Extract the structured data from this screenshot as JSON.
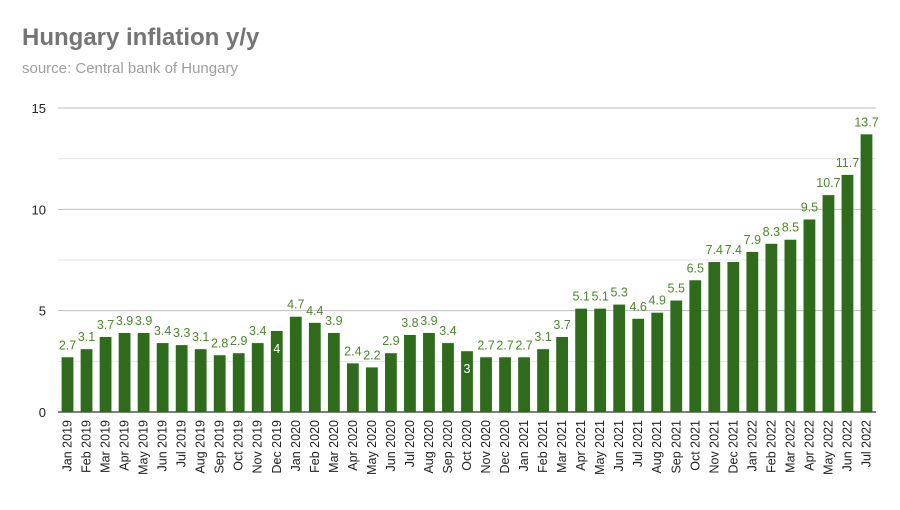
{
  "chart_data": {
    "type": "bar",
    "title": "Hungary inflation y/y",
    "subtitle": "source: Central bank of Hungary",
    "xlabel": "",
    "ylabel": "",
    "ylim": [
      0,
      15
    ],
    "yticks": [
      0,
      5,
      10,
      15
    ],
    "grid": true,
    "bar_color": "#2e6b1a",
    "label_color": "#4a8a2a",
    "categories": [
      "Jan 2019",
      "Feb 2019",
      "Mar 2019",
      "Apr 2019",
      "May 2019",
      "Jun 2019",
      "Jul 2019",
      "Aug 2019",
      "Sep 2019",
      "Oct 2019",
      "Nov 2019",
      "Dec 2019",
      "Jan 2020",
      "Feb 2020",
      "Mar 2020",
      "Apr 2020",
      "May 2020",
      "Jun 2020",
      "Jul 2020",
      "Aug 2020",
      "Sep 2020",
      "Oct 2020",
      "Nov 2020",
      "Dec 2020",
      "Jan 2021",
      "Feb 2021",
      "Mar 2021",
      "Apr 2021",
      "May 2021",
      "Jun 2021",
      "Jul 2021",
      "Aug 2021",
      "Sep 2021",
      "Oct 2021",
      "Nov 2021",
      "Dec 2021",
      "Jan 2022",
      "Feb 2022",
      "Mar 2022",
      "Apr 2022",
      "May 2022",
      "Jun 2022",
      "Jul 2022"
    ],
    "values": [
      2.7,
      3.1,
      3.7,
      3.9,
      3.9,
      3.4,
      3.3,
      3.1,
      2.8,
      2.9,
      3.4,
      4,
      4.7,
      4.4,
      3.9,
      2.4,
      2.2,
      2.9,
      3.8,
      3.9,
      3.4,
      3,
      2.7,
      2.7,
      2.7,
      3.1,
      3.7,
      5.1,
      5.1,
      5.3,
      4.6,
      4.9,
      5.5,
      6.5,
      7.4,
      7.4,
      7.9,
      8.3,
      8.5,
      9.5,
      10.7,
      11.7,
      13.7
    ]
  }
}
